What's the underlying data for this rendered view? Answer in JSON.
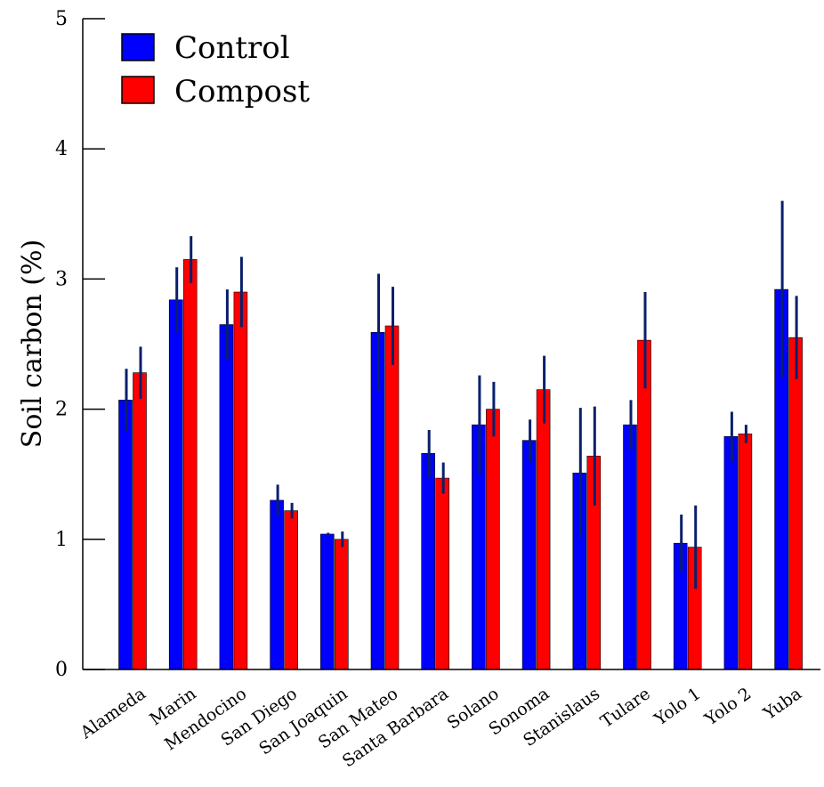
{
  "chart_data": {
    "type": "bar",
    "title": "",
    "xlabel": "",
    "ylabel": "Soil carbon (%)",
    "ylim": [
      0,
      5
    ],
    "yticks": [
      "0",
      "1",
      "2",
      "3",
      "4",
      "5"
    ],
    "grid": false,
    "legend_position": "top-left",
    "categories": [
      "Alameda",
      "Marin",
      "Mendocino",
      "San Diego",
      "San Joaquin",
      "San Mateo",
      "Santa Barbara",
      "Solano",
      "Sonoma",
      "Stanislaus",
      "Tulare",
      "Yolo 1",
      "Yolo 2",
      "Yuba"
    ],
    "series": [
      {
        "name": "Control",
        "color": "#0000ff",
        "values": [
          2.07,
          2.84,
          2.65,
          1.3,
          1.04,
          2.59,
          1.66,
          1.88,
          1.76,
          1.51,
          1.88,
          0.97,
          1.79,
          2.92
        ],
        "errors": [
          0.24,
          0.25,
          0.27,
          0.12,
          0.01,
          0.45,
          0.18,
          0.38,
          0.16,
          0.5,
          0.19,
          0.22,
          0.19,
          0.68
        ]
      },
      {
        "name": "Compost",
        "color": "#ff0000",
        "values": [
          2.28,
          3.15,
          2.9,
          1.22,
          1.0,
          2.64,
          1.47,
          2.0,
          2.15,
          1.64,
          2.53,
          0.94,
          1.81,
          2.55
        ],
        "errors": [
          0.2,
          0.18,
          0.27,
          0.06,
          0.06,
          0.3,
          0.12,
          0.21,
          0.26,
          0.38,
          0.37,
          0.32,
          0.07,
          0.32
        ]
      }
    ],
    "error_bar_color": "#0a1f6b"
  }
}
